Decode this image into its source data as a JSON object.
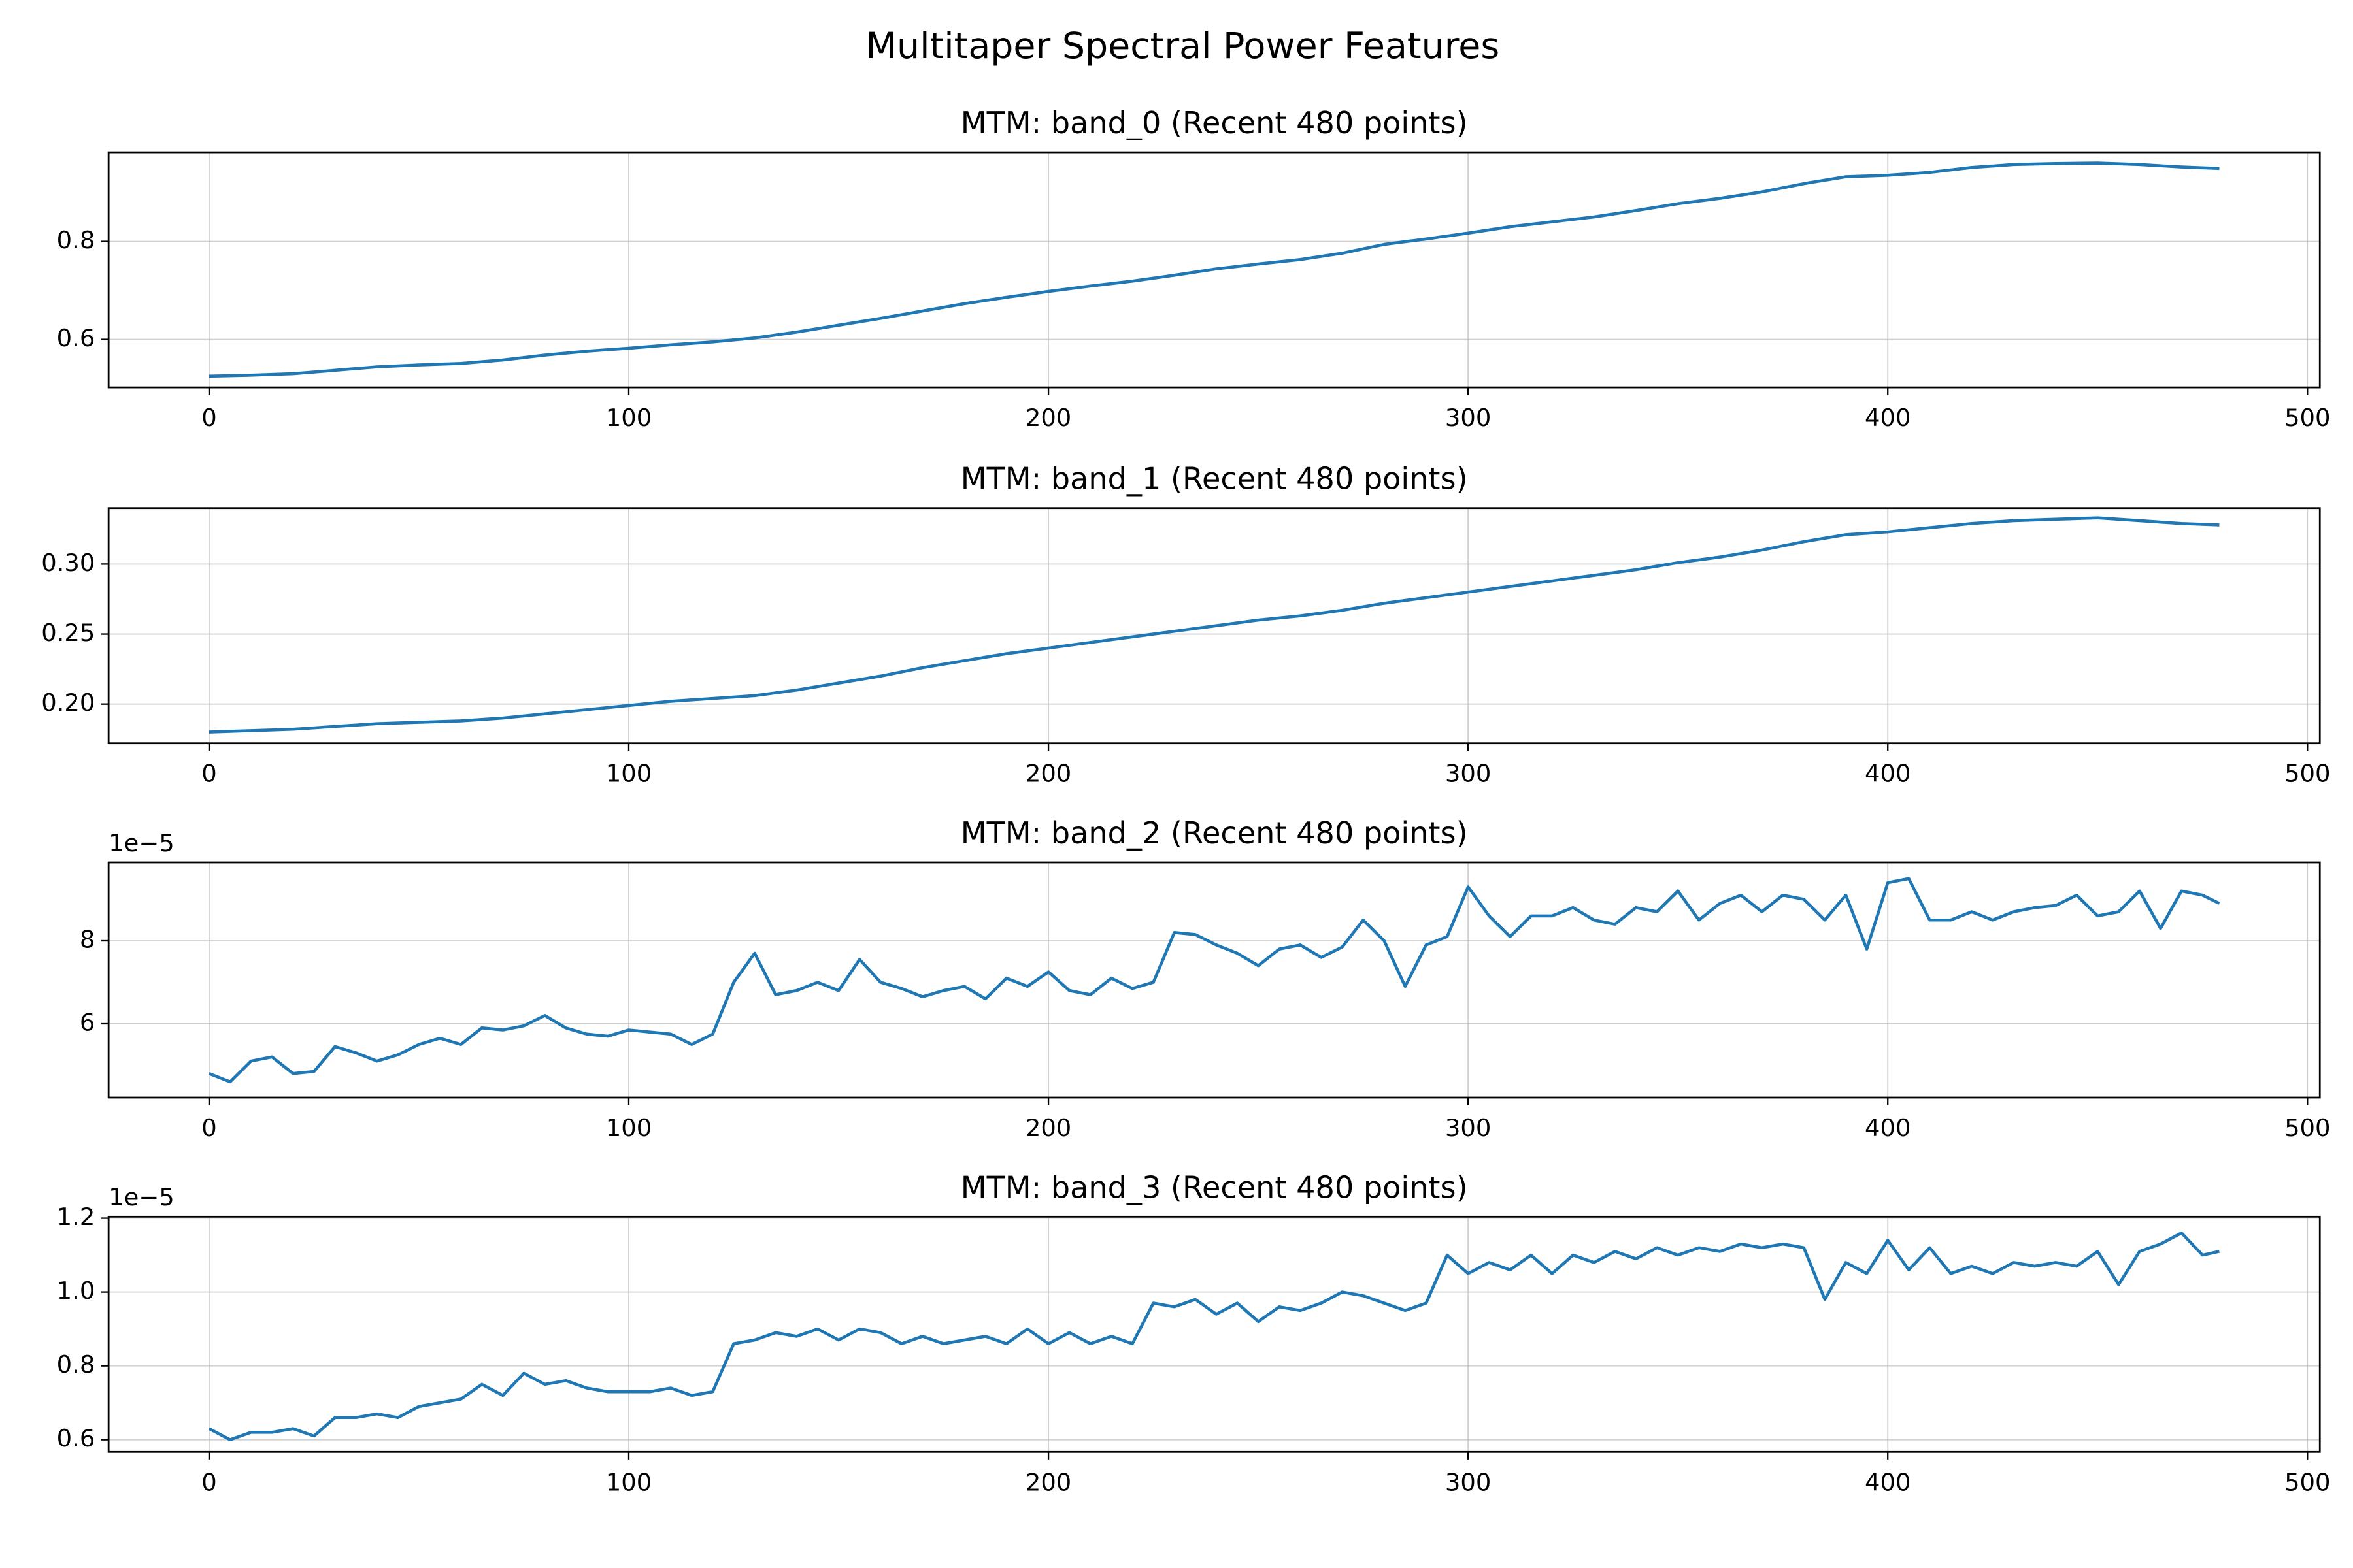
{
  "title": "Multitaper Spectral Power Features",
  "chart_data": [
    {
      "type": "line",
      "title": "MTM: band_0 (Recent 480 points)",
      "x": [
        0,
        10,
        20,
        30,
        40,
        50,
        60,
        70,
        80,
        90,
        100,
        110,
        120,
        130,
        140,
        150,
        160,
        170,
        180,
        190,
        200,
        210,
        220,
        230,
        240,
        250,
        260,
        270,
        280,
        290,
        300,
        310,
        320,
        330,
        340,
        350,
        360,
        370,
        380,
        390,
        400,
        410,
        420,
        430,
        440,
        450,
        460,
        470,
        479
      ],
      "series": [
        {
          "color": "#1f77b4",
          "values": [
            0.525,
            0.527,
            0.53,
            0.537,
            0.544,
            0.548,
            0.551,
            0.558,
            0.568,
            0.576,
            0.582,
            0.589,
            0.595,
            0.603,
            0.615,
            0.629,
            0.643,
            0.658,
            0.673,
            0.686,
            0.698,
            0.709,
            0.719,
            0.731,
            0.744,
            0.754,
            0.763,
            0.776,
            0.794,
            0.805,
            0.817,
            0.83,
            0.84,
            0.85,
            0.863,
            0.877,
            0.888,
            0.901,
            0.918,
            0.932,
            0.935,
            0.941,
            0.951,
            0.957,
            0.959,
            0.96,
            0.957,
            0.952,
            0.949
          ]
        }
      ],
      "xlim": [
        -23.95,
        502.95
      ],
      "xticks": [
        0,
        100,
        200,
        300,
        400,
        500
      ],
      "ylim": [
        0.502,
        0.982
      ],
      "yticks": [
        0.6,
        0.8
      ],
      "grid": true
    },
    {
      "type": "line",
      "title": "MTM: band_1 (Recent 480 points)",
      "x": [
        0,
        10,
        20,
        30,
        40,
        50,
        60,
        70,
        80,
        90,
        100,
        110,
        120,
        130,
        140,
        150,
        160,
        170,
        180,
        190,
        200,
        210,
        220,
        230,
        240,
        250,
        260,
        270,
        280,
        290,
        300,
        310,
        320,
        330,
        340,
        350,
        360,
        370,
        380,
        390,
        400,
        410,
        420,
        430,
        440,
        450,
        460,
        470,
        479
      ],
      "series": [
        {
          "color": "#1f77b4",
          "values": [
            0.18,
            0.181,
            0.182,
            0.184,
            0.186,
            0.187,
            0.188,
            0.19,
            0.193,
            0.196,
            0.199,
            0.202,
            0.204,
            0.206,
            0.21,
            0.215,
            0.22,
            0.226,
            0.231,
            0.236,
            0.24,
            0.244,
            0.248,
            0.252,
            0.256,
            0.26,
            0.263,
            0.267,
            0.272,
            0.276,
            0.28,
            0.284,
            0.288,
            0.292,
            0.296,
            0.301,
            0.305,
            0.31,
            0.316,
            0.321,
            0.323,
            0.326,
            0.329,
            0.331,
            0.332,
            0.333,
            0.331,
            0.329,
            0.328
          ]
        }
      ],
      "xlim": [
        -23.95,
        502.95
      ],
      "xticks": [
        0,
        100,
        200,
        300,
        400,
        500
      ],
      "ylim": [
        0.172,
        0.34
      ],
      "yticks": [
        {
          "value": 0.2,
          "label": "0.20"
        },
        0.25,
        {
          "value": 0.3,
          "label": "0.30"
        }
      ],
      "grid": true
    },
    {
      "type": "line",
      "title": "MTM: band_2 (Recent 480 points)",
      "offset_text": "1e−5",
      "x": [
        0,
        5,
        10,
        15,
        20,
        25,
        30,
        35,
        40,
        45,
        50,
        55,
        60,
        65,
        70,
        75,
        80,
        85,
        90,
        95,
        100,
        105,
        110,
        115,
        120,
        125,
        130,
        135,
        140,
        145,
        150,
        155,
        160,
        165,
        170,
        175,
        180,
        185,
        190,
        195,
        200,
        205,
        210,
        215,
        220,
        225,
        230,
        235,
        240,
        245,
        250,
        255,
        260,
        265,
        270,
        275,
        280,
        285,
        290,
        295,
        300,
        305,
        310,
        315,
        320,
        325,
        330,
        335,
        340,
        345,
        350,
        355,
        360,
        365,
        370,
        375,
        380,
        385,
        390,
        395,
        400,
        405,
        410,
        415,
        420,
        425,
        430,
        435,
        440,
        445,
        450,
        455,
        460,
        465,
        470,
        475,
        479
      ],
      "series": [
        {
          "color": "#1f77b4",
          "values": [
            4.8,
            4.6,
            5.1,
            5.2,
            4.8,
            4.85,
            5.45,
            5.3,
            5.1,
            5.25,
            5.5,
            5.65,
            5.5,
            5.9,
            5.85,
            5.95,
            6.2,
            5.9,
            5.75,
            5.7,
            5.85,
            5.8,
            5.75,
            5.5,
            5.75,
            7.0,
            7.7,
            6.7,
            6.8,
            7.0,
            6.8,
            7.55,
            7.0,
            6.85,
            6.65,
            6.8,
            6.9,
            6.6,
            7.1,
            6.9,
            7.25,
            6.8,
            6.7,
            7.1,
            6.85,
            7.0,
            8.2,
            8.15,
            7.9,
            7.7,
            7.4,
            7.8,
            7.9,
            7.6,
            7.85,
            8.5,
            8.0,
            6.9,
            7.9,
            8.1,
            9.3,
            8.6,
            8.1,
            8.6,
            8.6,
            8.8,
            8.5,
            8.4,
            8.8,
            8.7,
            9.2,
            8.5,
            8.9,
            9.1,
            8.7,
            9.1,
            9.0,
            8.5,
            9.1,
            7.8,
            9.4,
            9.5,
            8.5,
            8.5,
            8.7,
            8.5,
            8.7,
            8.8,
            8.85,
            9.1,
            8.6,
            8.7,
            9.2,
            8.3,
            9.2,
            9.1,
            8.9
          ]
        }
      ],
      "xlim": [
        -23.95,
        502.95
      ],
      "xticks": [
        0,
        100,
        200,
        300,
        400,
        500
      ],
      "ylim": [
        4.22,
        9.89
      ],
      "yticks": [
        6,
        8
      ],
      "grid": true
    },
    {
      "type": "line",
      "title": "MTM: band_3 (Recent 480 points)",
      "offset_text": "1e−5",
      "x": [
        0,
        5,
        10,
        15,
        20,
        25,
        30,
        35,
        40,
        45,
        50,
        55,
        60,
        65,
        70,
        75,
        80,
        85,
        90,
        95,
        100,
        105,
        110,
        115,
        120,
        125,
        130,
        135,
        140,
        145,
        150,
        155,
        160,
        165,
        170,
        175,
        180,
        185,
        190,
        195,
        200,
        205,
        210,
        215,
        220,
        225,
        230,
        235,
        240,
        245,
        250,
        255,
        260,
        265,
        270,
        275,
        280,
        285,
        290,
        295,
        300,
        305,
        310,
        315,
        320,
        325,
        330,
        335,
        340,
        345,
        350,
        355,
        360,
        365,
        370,
        375,
        380,
        385,
        390,
        395,
        400,
        405,
        410,
        415,
        420,
        425,
        430,
        435,
        440,
        445,
        450,
        455,
        460,
        465,
        470,
        475,
        479
      ],
      "series": [
        {
          "color": "#1f77b4",
          "values": [
            0.63,
            0.6,
            0.62,
            0.62,
            0.63,
            0.61,
            0.66,
            0.66,
            0.67,
            0.66,
            0.69,
            0.7,
            0.71,
            0.75,
            0.72,
            0.78,
            0.75,
            0.76,
            0.74,
            0.73,
            0.73,
            0.73,
            0.74,
            0.72,
            0.73,
            0.86,
            0.87,
            0.89,
            0.88,
            0.9,
            0.87,
            0.9,
            0.89,
            0.86,
            0.88,
            0.86,
            0.87,
            0.88,
            0.86,
            0.9,
            0.86,
            0.89,
            0.86,
            0.88,
            0.86,
            0.97,
            0.96,
            0.98,
            0.94,
            0.97,
            0.92,
            0.96,
            0.95,
            0.97,
            1.0,
            0.99,
            0.97,
            0.95,
            0.97,
            1.1,
            1.05,
            1.08,
            1.06,
            1.1,
            1.05,
            1.1,
            1.08,
            1.11,
            1.09,
            1.12,
            1.1,
            1.12,
            1.11,
            1.13,
            1.12,
            1.13,
            1.12,
            0.98,
            1.08,
            1.05,
            1.14,
            1.06,
            1.12,
            1.05,
            1.07,
            1.05,
            1.08,
            1.07,
            1.08,
            1.07,
            1.11,
            1.02,
            1.11,
            1.13,
            1.16,
            1.1,
            1.11
          ]
        }
      ],
      "xlim": [
        -23.95,
        502.95
      ],
      "xticks": [
        0,
        100,
        200,
        300,
        400,
        500
      ],
      "ylim": [
        0.567,
        1.204
      ],
      "yticks": [
        0.6,
        0.8,
        {
          "value": 1,
          "label": "1.0"
        },
        1.2
      ],
      "grid": true
    }
  ]
}
